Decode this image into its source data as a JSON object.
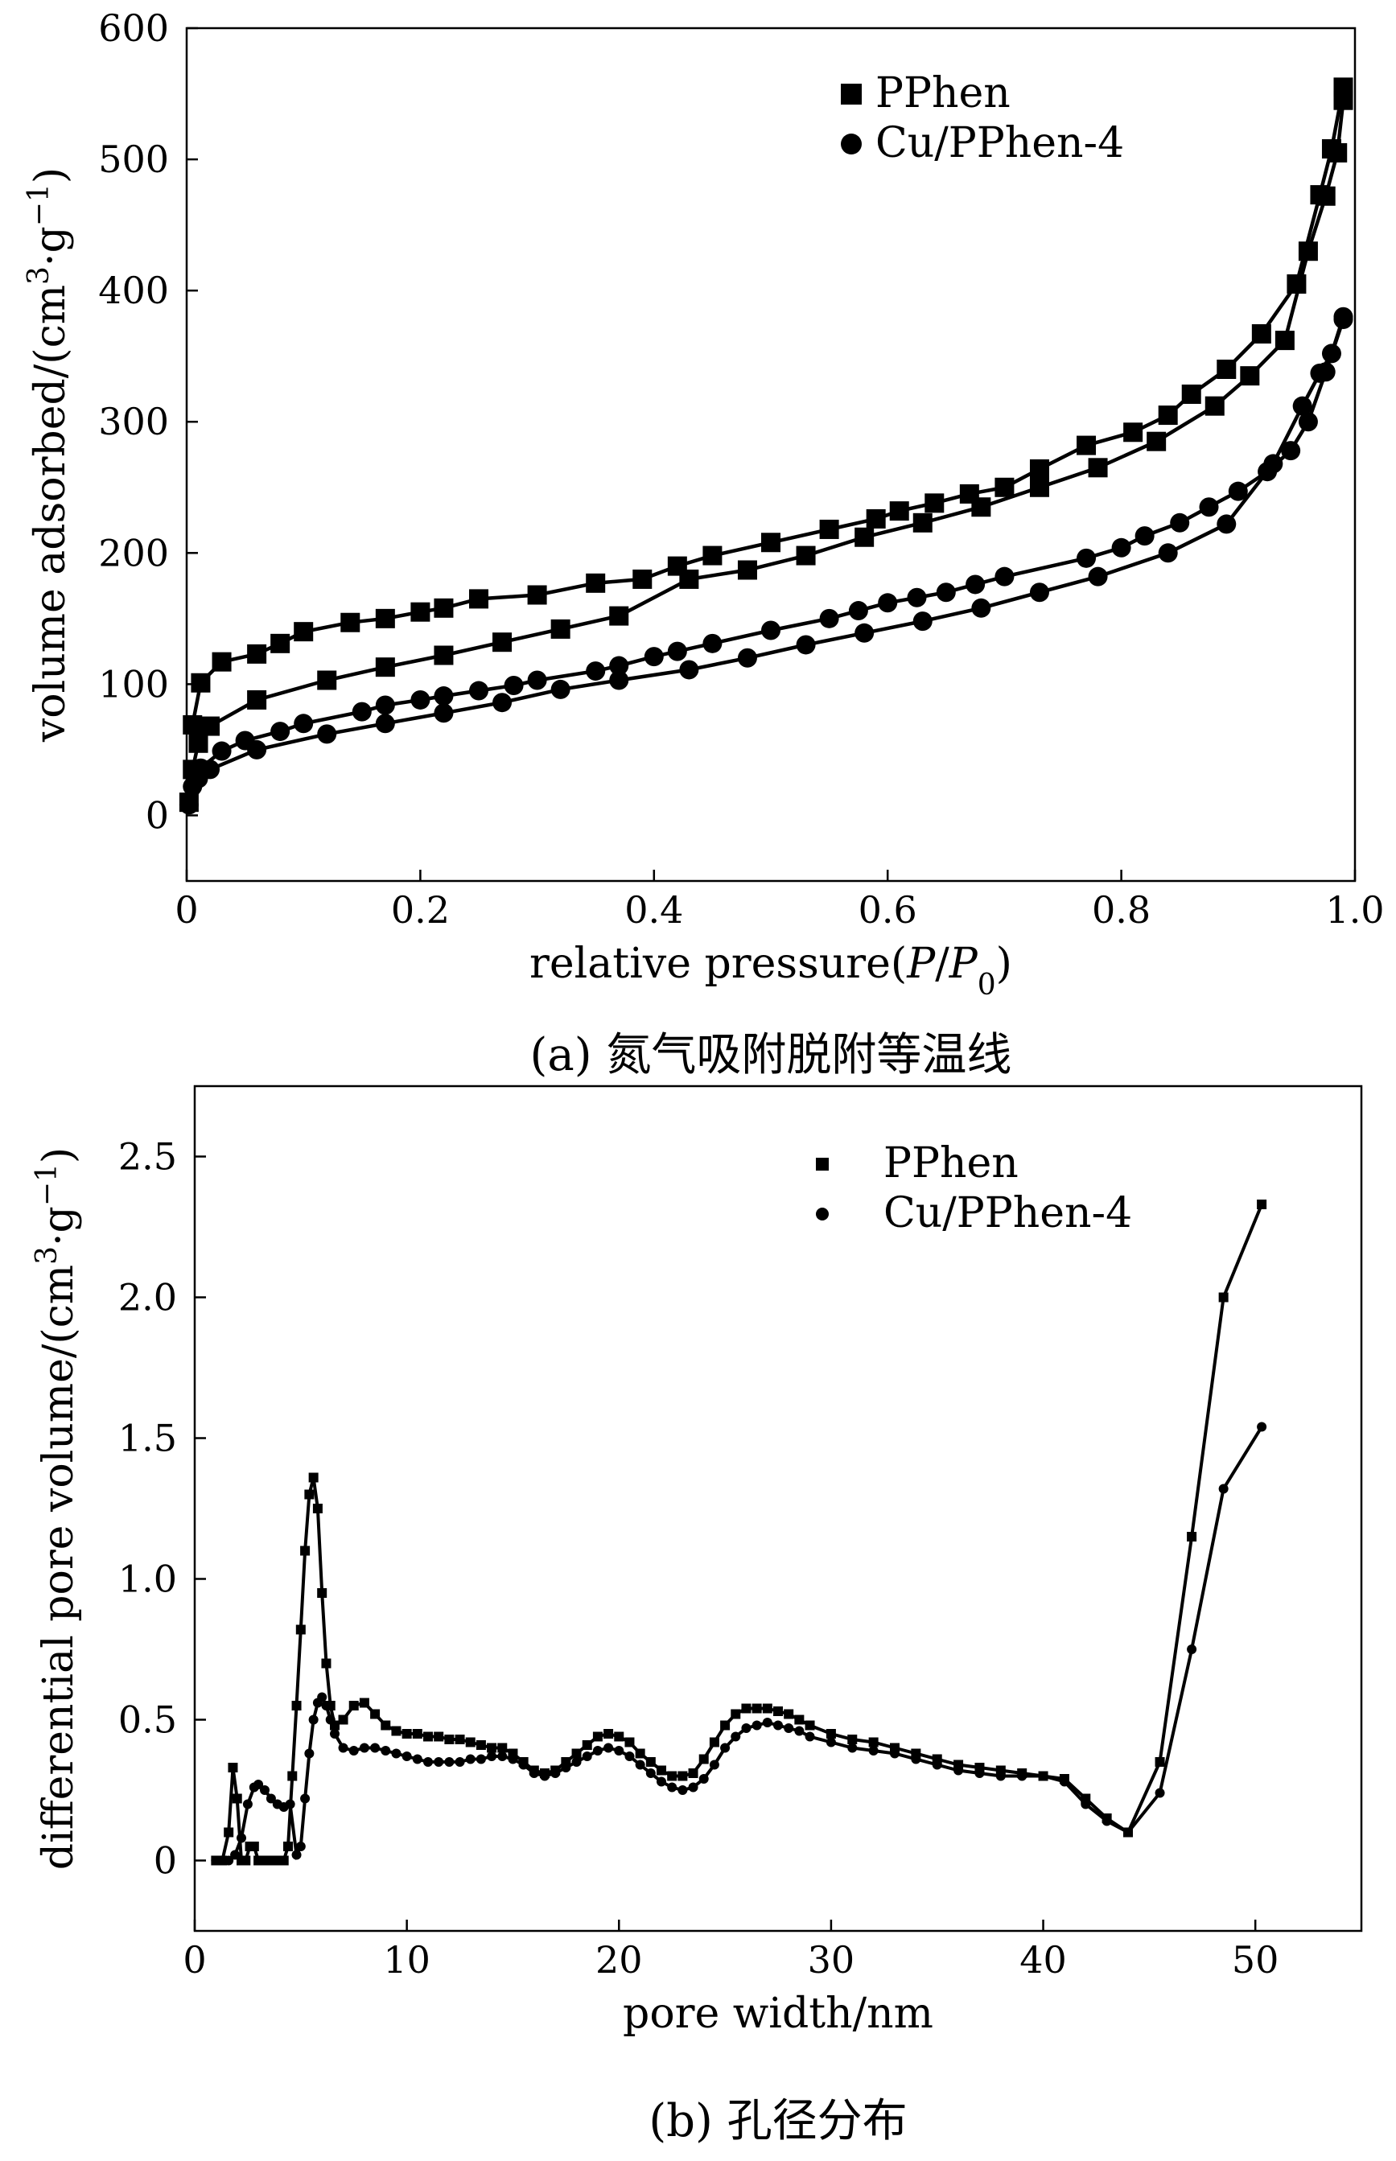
{
  "chart_data": [
    {
      "type": "line",
      "caption": "(a) 氮气吸附脱附等温线",
      "xlabel": "relative pressure(P/P0)",
      "ylabel": "volume adsorbed/(cm3·g−1)",
      "xlim": [
        0,
        1.0
      ],
      "ylim": [
        -50,
        600
      ],
      "x_ticks": [
        "0",
        "0.2",
        "0.4",
        "0.6",
        "0.8",
        "1.0"
      ],
      "y_ticks": [
        "0",
        "100",
        "200",
        "300",
        "400",
        "500",
        "600"
      ],
      "legend_position": "top-right",
      "grid": false,
      "series": [
        {
          "name": "PPhen",
          "branch": "adsorption",
          "marker": "square",
          "x": [
            0.002,
            0.005,
            0.01,
            0.02,
            0.06,
            0.12,
            0.17,
            0.22,
            0.27,
            0.32,
            0.37,
            0.43,
            0.48,
            0.53,
            0.58,
            0.63,
            0.68,
            0.73,
            0.78,
            0.83,
            0.88,
            0.91,
            0.94,
            0.96,
            0.975,
            0.985,
            0.99
          ],
          "y": [
            10,
            35,
            55,
            68,
            88,
            103,
            113,
            122,
            132,
            142,
            152,
            180,
            187,
            198,
            212,
            223,
            235,
            250,
            265,
            285,
            312,
            335,
            362,
            430,
            472,
            505,
            545
          ]
        },
        {
          "name": "PPhen",
          "branch": "desorption",
          "marker": "square",
          "x": [
            0.99,
            0.98,
            0.97,
            0.95,
            0.92,
            0.89,
            0.86,
            0.84,
            0.81,
            0.77,
            0.73,
            0.7,
            0.67,
            0.64,
            0.61,
            0.59,
            0.55,
            0.5,
            0.45,
            0.42,
            0.39,
            0.35,
            0.3,
            0.25,
            0.22,
            0.2,
            0.17,
            0.14,
            0.1,
            0.08,
            0.06,
            0.03,
            0.012,
            0.005
          ],
          "y": [
            555,
            508,
            473,
            405,
            367,
            340,
            321,
            305,
            292,
            282,
            264,
            250,
            245,
            238,
            232,
            226,
            218,
            208,
            198,
            190,
            180,
            177,
            168,
            165,
            158,
            155,
            150,
            147,
            140,
            131,
            123,
            117,
            101,
            69
          ]
        },
        {
          "name": "Cu/PPhen-4",
          "branch": "adsorption",
          "marker": "circle",
          "x": [
            0.002,
            0.005,
            0.01,
            0.02,
            0.06,
            0.12,
            0.17,
            0.22,
            0.27,
            0.32,
            0.37,
            0.43,
            0.48,
            0.53,
            0.58,
            0.63,
            0.68,
            0.73,
            0.78,
            0.84,
            0.89,
            0.93,
            0.955,
            0.97,
            0.98,
            0.99
          ],
          "y": [
            8,
            22,
            28,
            35,
            50,
            62,
            70,
            78,
            86,
            96,
            103,
            111,
            120,
            130,
            139,
            148,
            158,
            170,
            182,
            200,
            222,
            268,
            312,
            337,
            352,
            380
          ]
        },
        {
          "name": "Cu/PPhen-4",
          "branch": "desorption",
          "marker": "circle",
          "x": [
            0.99,
            0.975,
            0.96,
            0.945,
            0.925,
            0.9,
            0.875,
            0.85,
            0.82,
            0.8,
            0.77,
            0.7,
            0.675,
            0.65,
            0.625,
            0.6,
            0.575,
            0.55,
            0.5,
            0.45,
            0.42,
            0.4,
            0.37,
            0.35,
            0.3,
            0.28,
            0.25,
            0.22,
            0.2,
            0.17,
            0.15,
            0.1,
            0.08,
            0.05,
            0.03,
            0.012
          ],
          "y": [
            378,
            338,
            300,
            278,
            262,
            247,
            235,
            223,
            213,
            204,
            196,
            182,
            176,
            170,
            166,
            162,
            156,
            150,
            141,
            131,
            125,
            121,
            114,
            110,
            103,
            99,
            95,
            91,
            88,
            84,
            79,
            70,
            64,
            57,
            49,
            36
          ]
        }
      ]
    },
    {
      "type": "line",
      "caption": "(b) 孔径分布",
      "xlabel": "pore width/nm",
      "ylabel": "differential pore volume/(cm3·g−1)",
      "xlim": [
        0,
        55
      ],
      "ylim": [
        -0.25,
        2.75
      ],
      "x_ticks": [
        "0",
        "10",
        "20",
        "30",
        "40",
        "50"
      ],
      "y_ticks": [
        "0",
        "0.5",
        "1.0",
        "1.5",
        "2.0",
        "2.5"
      ],
      "legend_position": "top-right",
      "grid": false,
      "series": [
        {
          "name": "PPhen",
          "marker": "square",
          "x": [
            1.0,
            1.3,
            1.6,
            1.8,
            2.0,
            2.2,
            2.4,
            2.6,
            2.8,
            3.0,
            3.2,
            3.4,
            3.6,
            3.8,
            4.0,
            4.2,
            4.4,
            4.6,
            4.8,
            5.0,
            5.2,
            5.4,
            5.6,
            5.8,
            6.0,
            6.2,
            6.4,
            6.6,
            7.0,
            7.5,
            8.0,
            8.5,
            9.0,
            9.5,
            10,
            10.5,
            11,
            11.5,
            12,
            12.5,
            13,
            13.5,
            14,
            14.5,
            15,
            15.5,
            16,
            16.5,
            17,
            17.5,
            18,
            18.5,
            19,
            19.5,
            20,
            20.5,
            21,
            21.5,
            22,
            22.5,
            23,
            23.5,
            24,
            24.5,
            25,
            25.5,
            26,
            26.5,
            27,
            27.5,
            28,
            28.5,
            29,
            30,
            31,
            32,
            33,
            34,
            35,
            36,
            37,
            38,
            39,
            40,
            41,
            42,
            43,
            44,
            45.5,
            47,
            48.5,
            50.3
          ],
          "y": [
            0,
            0,
            0.1,
            0.33,
            0.22,
            0.0,
            0.0,
            0.05,
            0.05,
            0.0,
            0.0,
            0.0,
            0.0,
            0.0,
            0.0,
            0.0,
            0.05,
            0.3,
            0.55,
            0.82,
            1.1,
            1.3,
            1.36,
            1.25,
            0.95,
            0.7,
            0.55,
            0.48,
            0.5,
            0.55,
            0.56,
            0.52,
            0.48,
            0.46,
            0.45,
            0.45,
            0.44,
            0.44,
            0.43,
            0.43,
            0.42,
            0.41,
            0.4,
            0.4,
            0.38,
            0.35,
            0.32,
            0.31,
            0.32,
            0.35,
            0.38,
            0.41,
            0.44,
            0.45,
            0.44,
            0.42,
            0.38,
            0.35,
            0.32,
            0.3,
            0.3,
            0.31,
            0.36,
            0.42,
            0.48,
            0.52,
            0.54,
            0.54,
            0.54,
            0.53,
            0.52,
            0.5,
            0.48,
            0.45,
            0.43,
            0.42,
            0.4,
            0.38,
            0.36,
            0.34,
            0.33,
            0.32,
            0.31,
            0.3,
            0.29,
            0.22,
            0.15,
            0.1,
            0.35,
            1.15,
            2.0,
            2.33
          ]
        },
        {
          "name": "Cu/PPhen-4",
          "marker": "circle",
          "x": [
            1.0,
            1.3,
            1.6,
            1.9,
            2.2,
            2.5,
            2.8,
            3.0,
            3.3,
            3.6,
            3.9,
            4.2,
            4.5,
            4.8,
            5.0,
            5.2,
            5.4,
            5.6,
            5.8,
            6.0,
            6.2,
            6.4,
            6.6,
            7.0,
            7.5,
            8.0,
            8.5,
            9.0,
            9.5,
            10,
            10.5,
            11,
            11.5,
            12,
            12.5,
            13,
            13.5,
            14,
            14.5,
            15,
            15.5,
            16,
            16.5,
            17,
            17.5,
            18,
            18.5,
            19,
            19.5,
            20,
            20.5,
            21,
            21.5,
            22,
            22.5,
            23,
            23.5,
            24,
            24.5,
            25,
            25.5,
            26,
            26.5,
            27,
            27.5,
            28,
            28.5,
            29,
            30,
            31,
            32,
            33,
            34,
            35,
            36,
            37,
            38,
            39,
            40,
            41,
            42,
            43,
            44,
            45.5,
            47,
            48.5,
            50.3
          ],
          "y": [
            0,
            0,
            0,
            0.02,
            0.08,
            0.2,
            0.26,
            0.27,
            0.25,
            0.22,
            0.2,
            0.19,
            0.2,
            0.02,
            0.05,
            0.22,
            0.38,
            0.5,
            0.56,
            0.58,
            0.55,
            0.5,
            0.45,
            0.4,
            0.39,
            0.4,
            0.4,
            0.39,
            0.38,
            0.37,
            0.36,
            0.35,
            0.35,
            0.35,
            0.35,
            0.36,
            0.36,
            0.37,
            0.37,
            0.36,
            0.34,
            0.31,
            0.3,
            0.31,
            0.33,
            0.35,
            0.37,
            0.39,
            0.4,
            0.39,
            0.37,
            0.34,
            0.31,
            0.28,
            0.26,
            0.25,
            0.26,
            0.29,
            0.34,
            0.4,
            0.44,
            0.47,
            0.48,
            0.49,
            0.48,
            0.47,
            0.46,
            0.44,
            0.42,
            0.4,
            0.39,
            0.38,
            0.36,
            0.34,
            0.32,
            0.31,
            0.3,
            0.3,
            0.3,
            0.28,
            0.2,
            0.14,
            0.1,
            0.24,
            0.75,
            1.32,
            1.54
          ]
        }
      ]
    }
  ]
}
